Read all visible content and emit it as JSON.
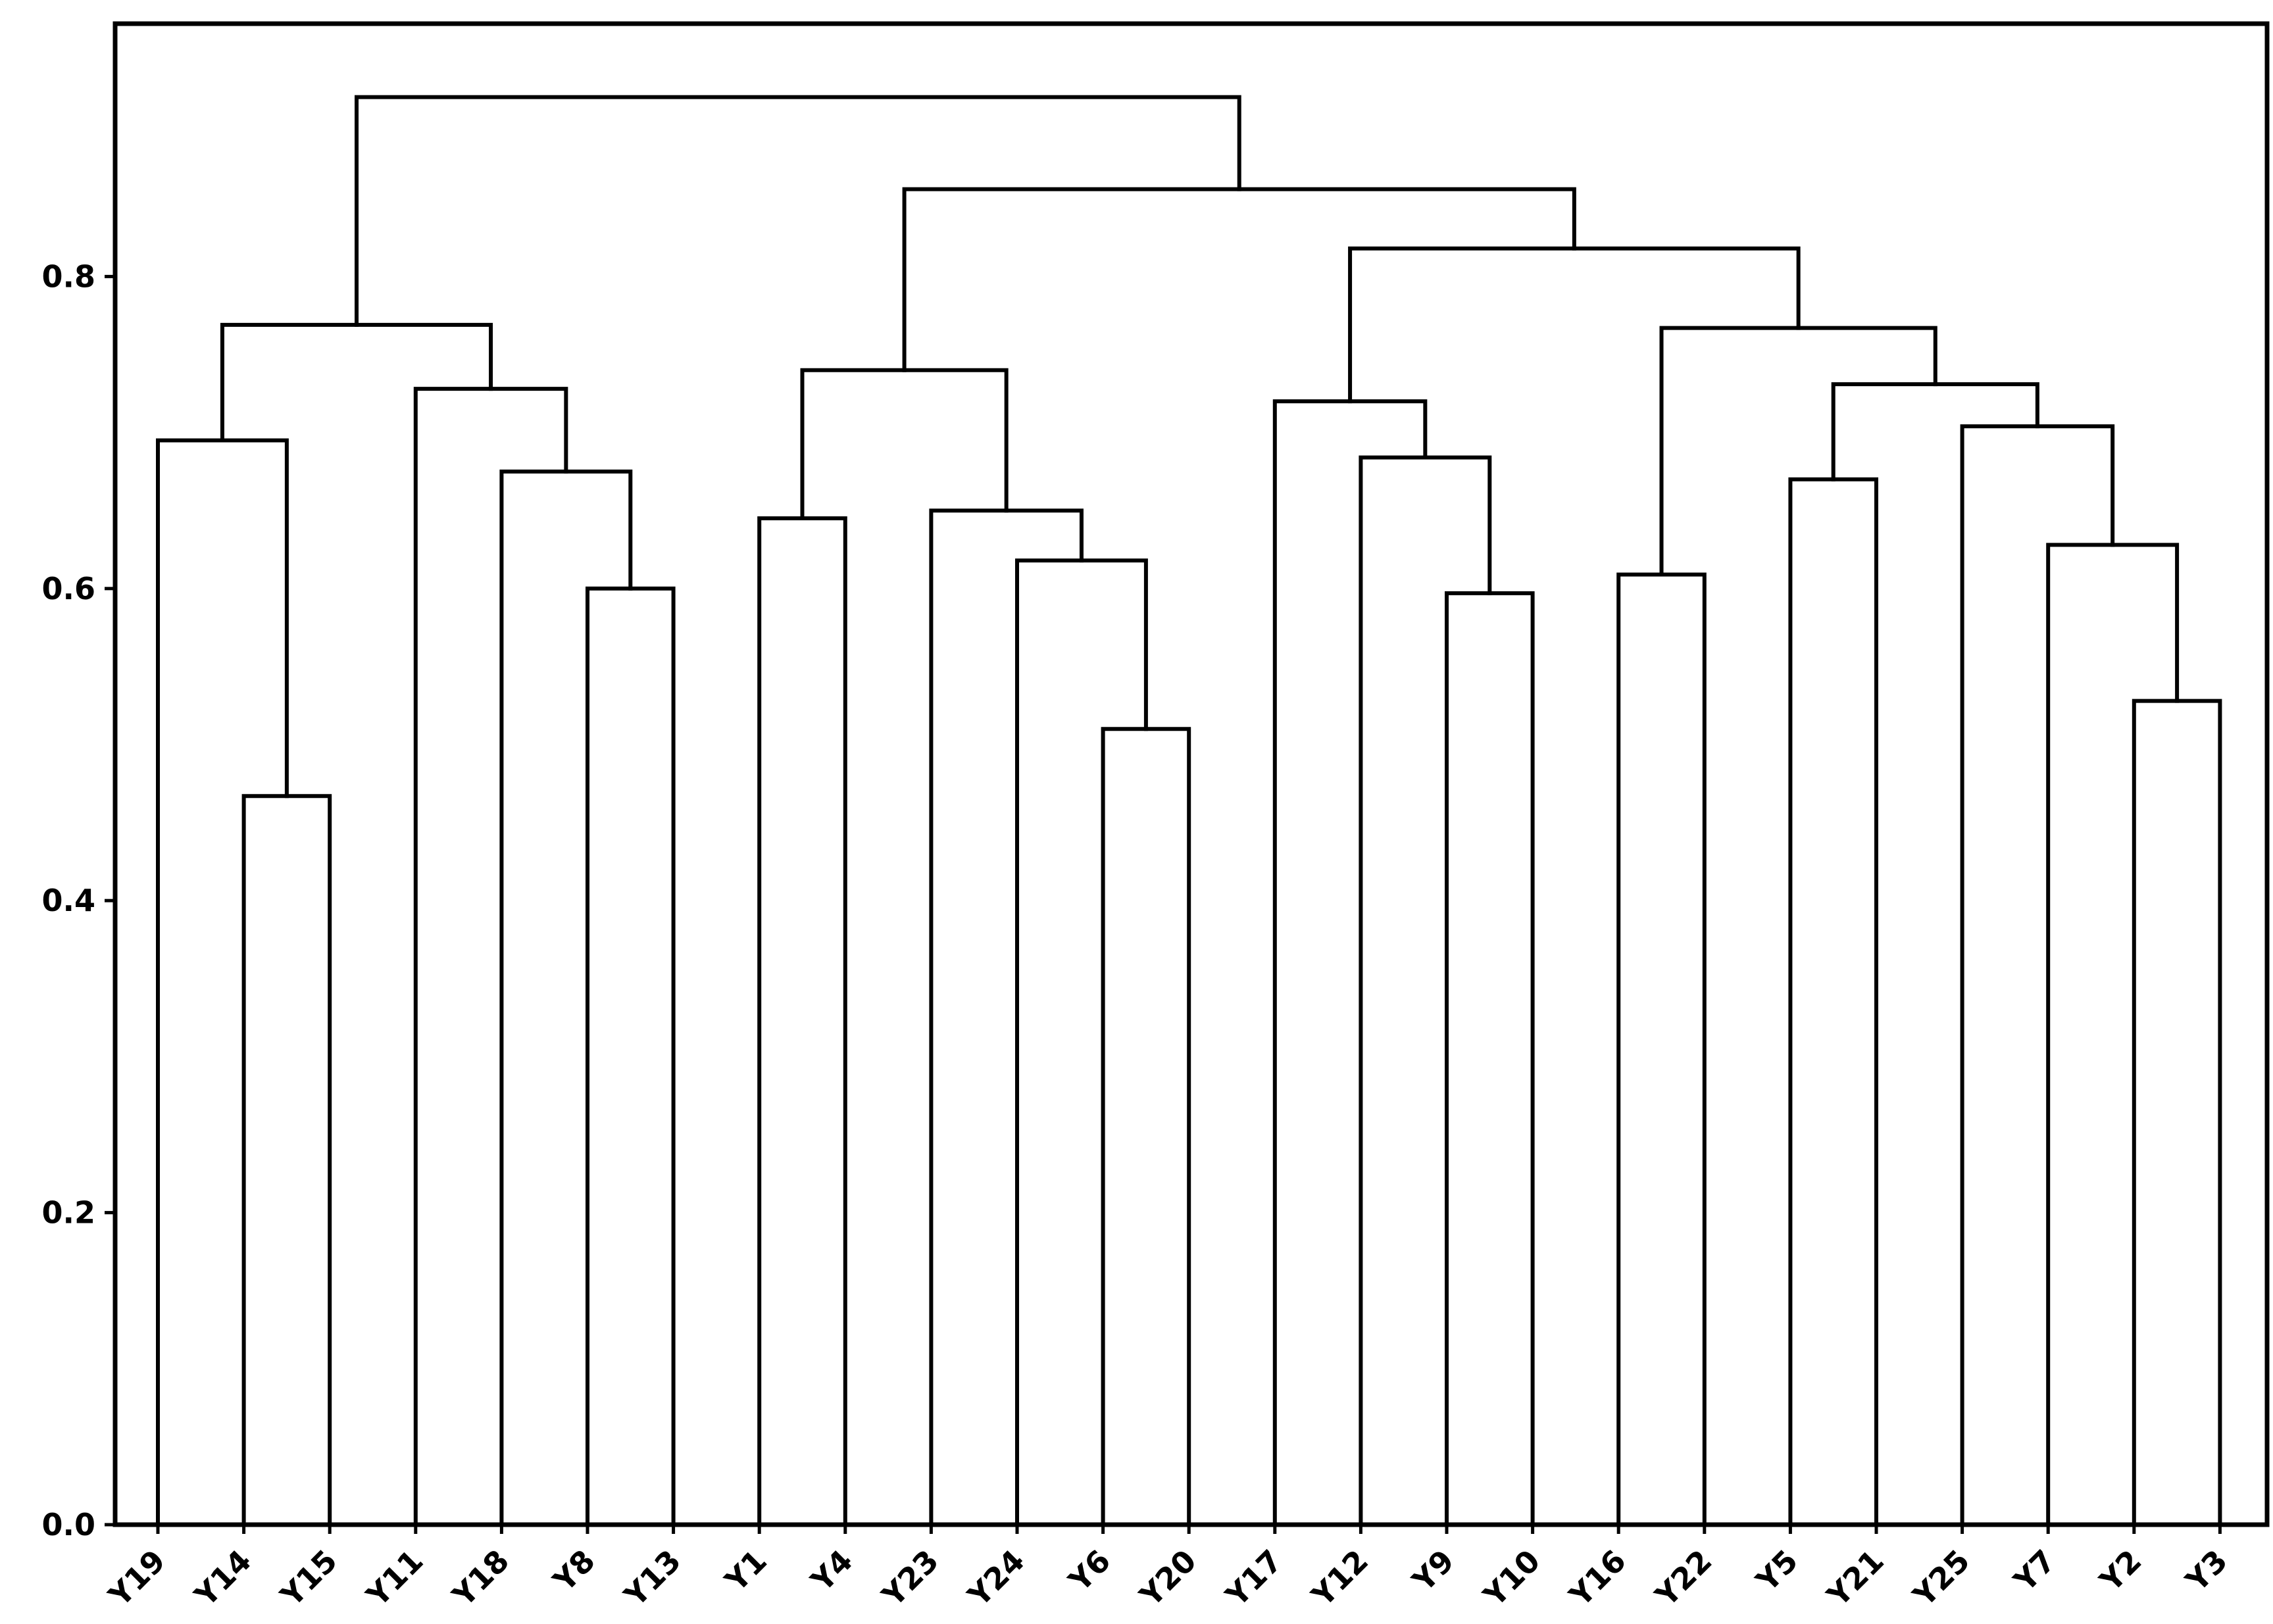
{
  "chart_data": {
    "type": "dendrogram",
    "title": "",
    "xlabel": "",
    "ylabel": "",
    "ylim": [
      0,
      0.95
    ],
    "yticks": [
      "0.0",
      "0.2",
      "0.4",
      "0.6",
      "0.8"
    ],
    "ytick_values": [
      0.0,
      0.2,
      0.4,
      0.6,
      0.8
    ],
    "leaves": [
      "Y19",
      "Y14",
      "Y15",
      "Y11",
      "Y18",
      "Y8",
      "Y13",
      "Y1",
      "Y4",
      "Y23",
      "Y24",
      "Y6",
      "Y20",
      "Y17",
      "Y12",
      "Y9",
      "Y10",
      "Y16",
      "Y22",
      "Y5",
      "Y21",
      "Y25",
      "Y7",
      "Y2",
      "Y3"
    ],
    "merges": [
      {
        "id": "c1",
        "left": "Y14",
        "right": "Y15",
        "height": 0.467
      },
      {
        "id": "c2",
        "left": "Y19",
        "right": "c1",
        "height": 0.695
      },
      {
        "id": "c3",
        "left": "Y8",
        "right": "Y13",
        "height": 0.6
      },
      {
        "id": "c4",
        "left": "Y18",
        "right": "c3",
        "height": 0.675
      },
      {
        "id": "c5",
        "left": "Y11",
        "right": "c4",
        "height": 0.728
      },
      {
        "id": "c6",
        "left": "c2",
        "right": "c5",
        "height": 0.769
      },
      {
        "id": "c7",
        "left": "Y1",
        "right": "Y4",
        "height": 0.645
      },
      {
        "id": "c8",
        "left": "Y6",
        "right": "Y20",
        "height": 0.51
      },
      {
        "id": "c9",
        "left": "Y24",
        "right": "c8",
        "height": 0.618
      },
      {
        "id": "c10",
        "left": "Y23",
        "right": "c9",
        "height": 0.65
      },
      {
        "id": "c11",
        "left": "c7",
        "right": "c10",
        "height": 0.74
      },
      {
        "id": "c12",
        "left": "Y9",
        "right": "Y10",
        "height": 0.597
      },
      {
        "id": "c13",
        "left": "Y12",
        "right": "c12",
        "height": 0.684
      },
      {
        "id": "c14",
        "left": "Y17",
        "right": "c13",
        "height": 0.72
      },
      {
        "id": "c15",
        "left": "Y16",
        "right": "Y22",
        "height": 0.609
      },
      {
        "id": "c16",
        "left": "Y2",
        "right": "Y3",
        "height": 0.528
      },
      {
        "id": "c17",
        "left": "Y7",
        "right": "c16",
        "height": 0.628
      },
      {
        "id": "c18",
        "left": "Y25",
        "right": "c17",
        "height": 0.704
      },
      {
        "id": "c19",
        "left": "Y5",
        "right": "Y21",
        "height": 0.67
      },
      {
        "id": "c20",
        "left": "c19",
        "right": "c18",
        "height": 0.731
      },
      {
        "id": "c21",
        "left": "c15",
        "right": "c20",
        "height": 0.767
      },
      {
        "id": "c22",
        "left": "c14",
        "right": "c21",
        "height": 0.818
      },
      {
        "id": "c23",
        "left": "c11",
        "right": "c22",
        "height": 0.856
      },
      {
        "id": "c24",
        "left": "c6",
        "right": "c23",
        "height": 0.915
      }
    ],
    "grid": false,
    "legend": "none",
    "colors": {
      "line": "#000000",
      "background": "#ffffff"
    }
  }
}
